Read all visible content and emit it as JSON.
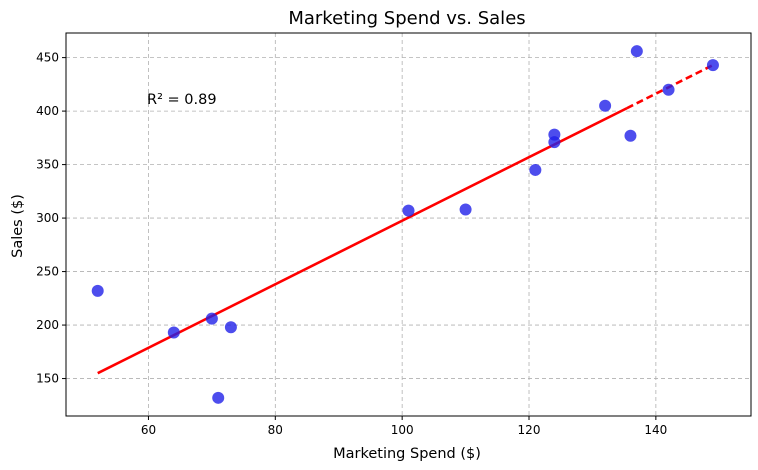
{
  "chart_data": {
    "type": "scatter",
    "title": "Marketing Spend vs. Sales",
    "xlabel": "Marketing Spend ($)",
    "ylabel": "Sales ($)",
    "xlim": [
      47,
      155
    ],
    "ylim": [
      115,
      473
    ],
    "xticks": [
      60,
      80,
      100,
      120,
      140
    ],
    "yticks": [
      150,
      200,
      250,
      300,
      350,
      400,
      450
    ],
    "grid": true,
    "annotation": "R² = 0.89",
    "point_color": "#2020e8",
    "line_color": "#ff0000",
    "points": [
      {
        "x": 52,
        "y": 232
      },
      {
        "x": 64,
        "y": 193
      },
      {
        "x": 70,
        "y": 206
      },
      {
        "x": 71,
        "y": 132
      },
      {
        "x": 73,
        "y": 198
      },
      {
        "x": 101,
        "y": 307
      },
      {
        "x": 110,
        "y": 308
      },
      {
        "x": 121,
        "y": 345
      },
      {
        "x": 124,
        "y": 371
      },
      {
        "x": 124,
        "y": 378
      },
      {
        "x": 132,
        "y": 405
      },
      {
        "x": 136,
        "y": 377
      },
      {
        "x": 137,
        "y": 456
      },
      {
        "x": 142,
        "y": 420
      },
      {
        "x": 149,
        "y": 443
      }
    ],
    "trendline": {
      "x": [
        52,
        149
      ],
      "y": [
        155,
        443
      ]
    }
  }
}
